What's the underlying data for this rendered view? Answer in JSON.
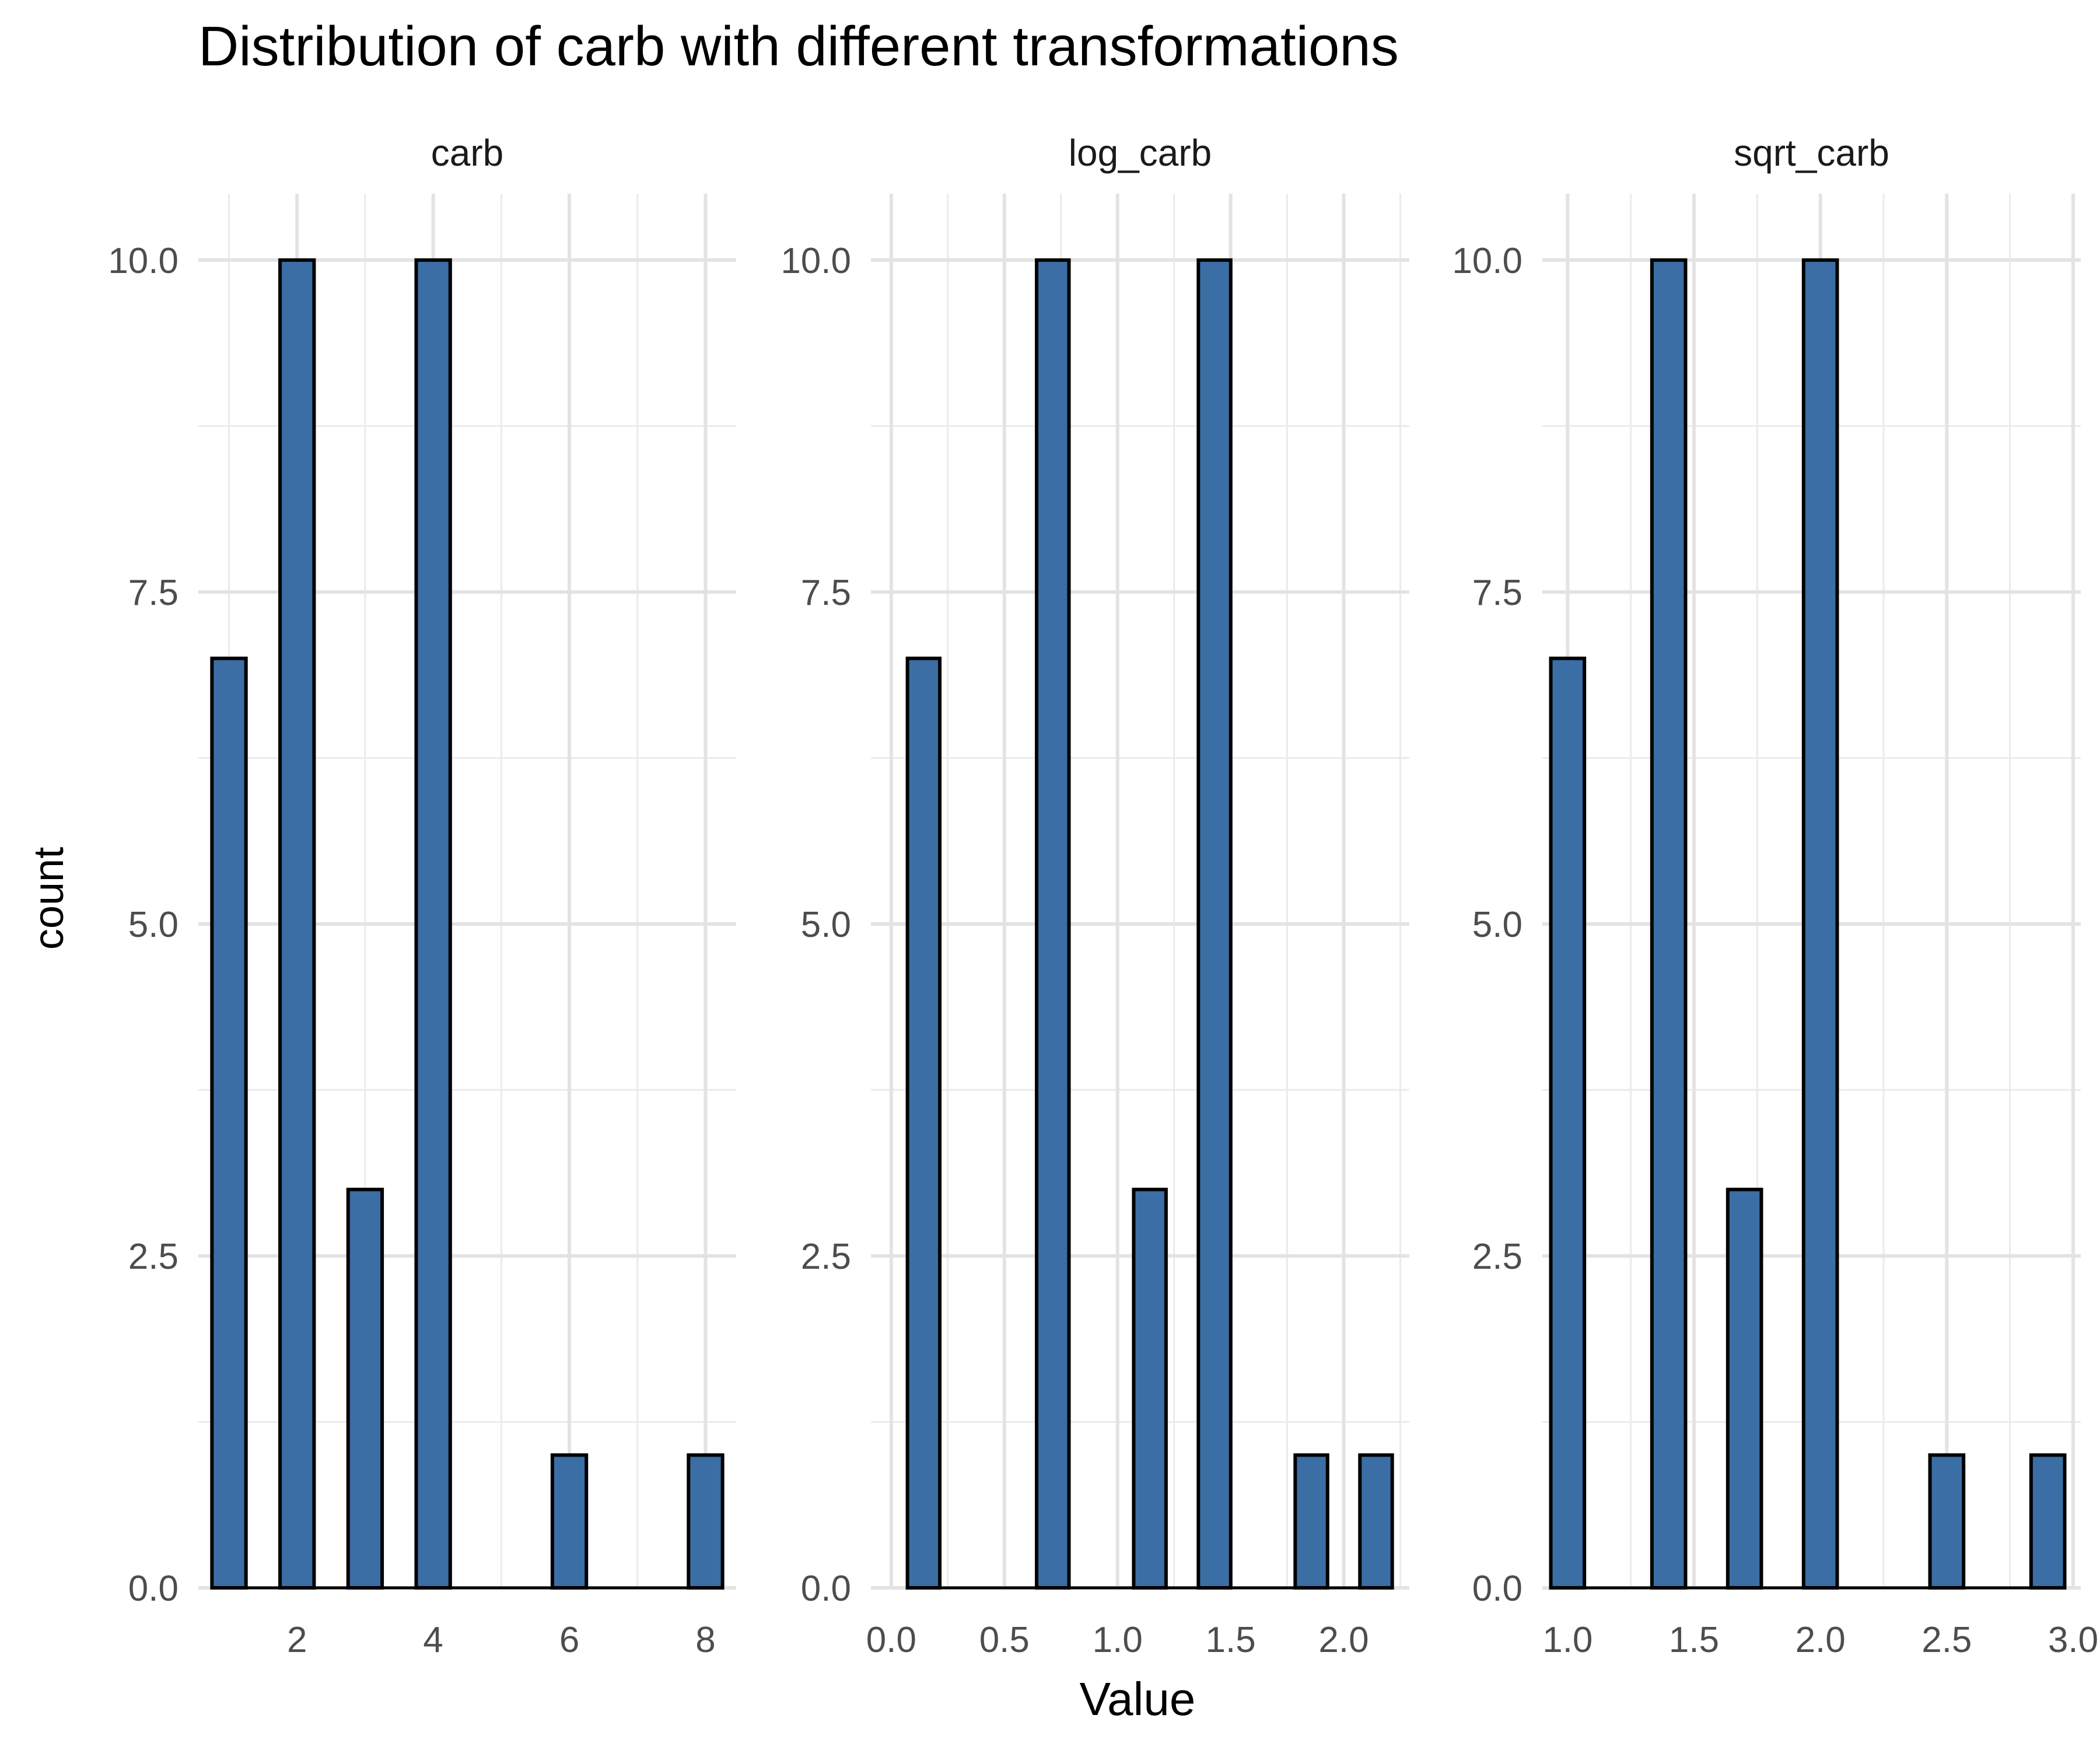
{
  "chart_data": {
    "type": "bar",
    "title": "Distribution of carb with different transformations",
    "xlabel": "Value",
    "ylabel": "count",
    "ylim": [
      0,
      10.5
    ],
    "yticks": [
      0.0,
      2.5,
      5.0,
      7.5,
      10.0
    ],
    "ytick_labels": [
      "0.0",
      "2.5",
      "5.0",
      "7.5",
      "10.0"
    ],
    "grid": true,
    "bar_fill": "#3A6EA5",
    "bar_stroke": "#000000",
    "panels": [
      {
        "name": "carb",
        "xlim": [
          0.55,
          8.45
        ],
        "xticks": [
          2,
          4,
          6,
          8
        ],
        "xtick_labels": [
          "2",
          "4",
          "6",
          "8"
        ],
        "bars": [
          {
            "x": 1,
            "count": 7
          },
          {
            "x": 2,
            "count": 10
          },
          {
            "x": 3,
            "count": 3
          },
          {
            "x": 4,
            "count": 10
          },
          {
            "x": 6,
            "count": 1
          },
          {
            "x": 8,
            "count": 1
          }
        ],
        "bin_width": 0.5,
        "baseline_range": [
          0.75,
          8.25
        ]
      },
      {
        "name": "log_carb",
        "xlim": [
          -0.09,
          2.29
        ],
        "xticks": [
          0.0,
          0.5,
          1.0,
          1.5,
          2.0
        ],
        "xtick_labels": [
          "0.0",
          "0.5",
          "1.0",
          "1.5",
          "2.0"
        ],
        "bars": [
          {
            "x": 0.143,
            "count": 7
          },
          {
            "x": 0.714,
            "count": 10
          },
          {
            "x": 1.143,
            "count": 3
          },
          {
            "x": 1.429,
            "count": 10
          },
          {
            "x": 1.857,
            "count": 1
          },
          {
            "x": 2.143,
            "count": 1
          }
        ],
        "bin_width": 0.143,
        "baseline_range": [
          0.071,
          2.214
        ]
      },
      {
        "name": "sqrt_carb",
        "xlim": [
          0.9,
          3.03
        ],
        "xticks": [
          1.0,
          1.5,
          2.0,
          2.5,
          3.0
        ],
        "xtick_labels": [
          "1.0",
          "1.5",
          "2.0",
          "2.5",
          "3.0"
        ],
        "bars": [
          {
            "x": 1.0,
            "count": 7
          },
          {
            "x": 1.4,
            "count": 10
          },
          {
            "x": 1.7,
            "count": 3
          },
          {
            "x": 2.0,
            "count": 10
          },
          {
            "x": 2.5,
            "count": 1
          },
          {
            "x": 2.9,
            "count": 1
          }
        ],
        "bin_width": 0.133,
        "baseline_range": [
          0.933,
          2.967
        ]
      }
    ]
  }
}
